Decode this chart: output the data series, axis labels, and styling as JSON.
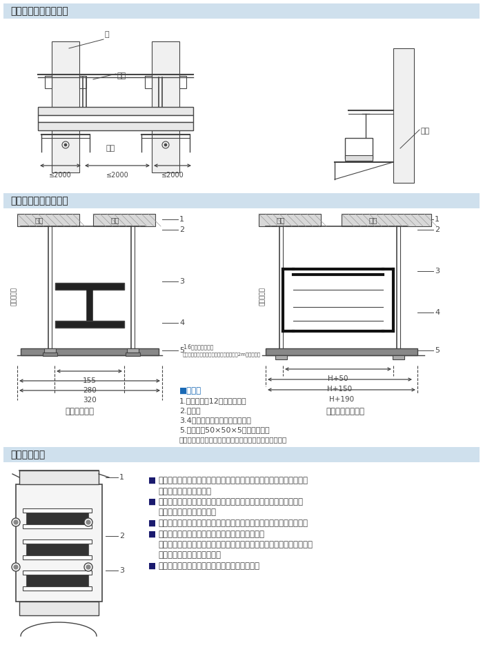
{
  "section1_title": "母线槽沿柱侧装示意图",
  "section2_title": "母线槽悬吊安装示意图",
  "section3_title": "母线槽的连接",
  "header_bg": "#cfe0ed",
  "header_text_color": "#1a1a1a",
  "bg_color": "#ffffff",
  "line_color": "#444444",
  "notes_title_text": "■备注：",
  "notes_title_color": "#1a6ab5",
  "notes_items": [
    "1.吊杆：圆钢12（用户自备）",
    "2.母线槽",
    "3.4压板螺栓、压板（配套供应）",
    "5.角钢支架50×50×5（用户自备）"
  ],
  "note_footer": "注：用户自备件，我厂也可以提供，只须在订货时说明。",
  "label_left": "水平悬吊安装",
  "label_right": "水平侧向悬吊安装",
  "dim_labels_left": [
    "155",
    "280",
    "320"
  ],
  "dim_labels_right": [
    "H+50",
    "H+150",
    "H+190"
  ],
  "bullet_color": "#1a1a6e",
  "section3_paras": [
    "■将母线槽两端相互插入后，穿入绝缘螺栓，垫入弹性垫圈，用扳手将螺栓拧紧，然后装上夹板。",
    "■安装或拆卸除分线箱时，必须切断母线槽电源。另外安装分线箱，要特别注意相序，不得误插。",
    "■安装完毕后，要对每道安装工序进行认真查检，确保安装完好、正确。",
    "■通电前必须对母线槽系统进行相位和连续性试验。\n检查接地电阻和绝缘电阻，检查与母线系统相连接的设备相位关系是否正确。得确认无误后方可通电。",
    "■母线槽安装时，我厂可派技术员进行现场指导。"
  ],
  "s1_note_line1": "1.6母线槽悬吊安装",
  "s1_note_line2": "母线槽悬吊安装架两安装支架的距离不大于2m，安装说明"
}
